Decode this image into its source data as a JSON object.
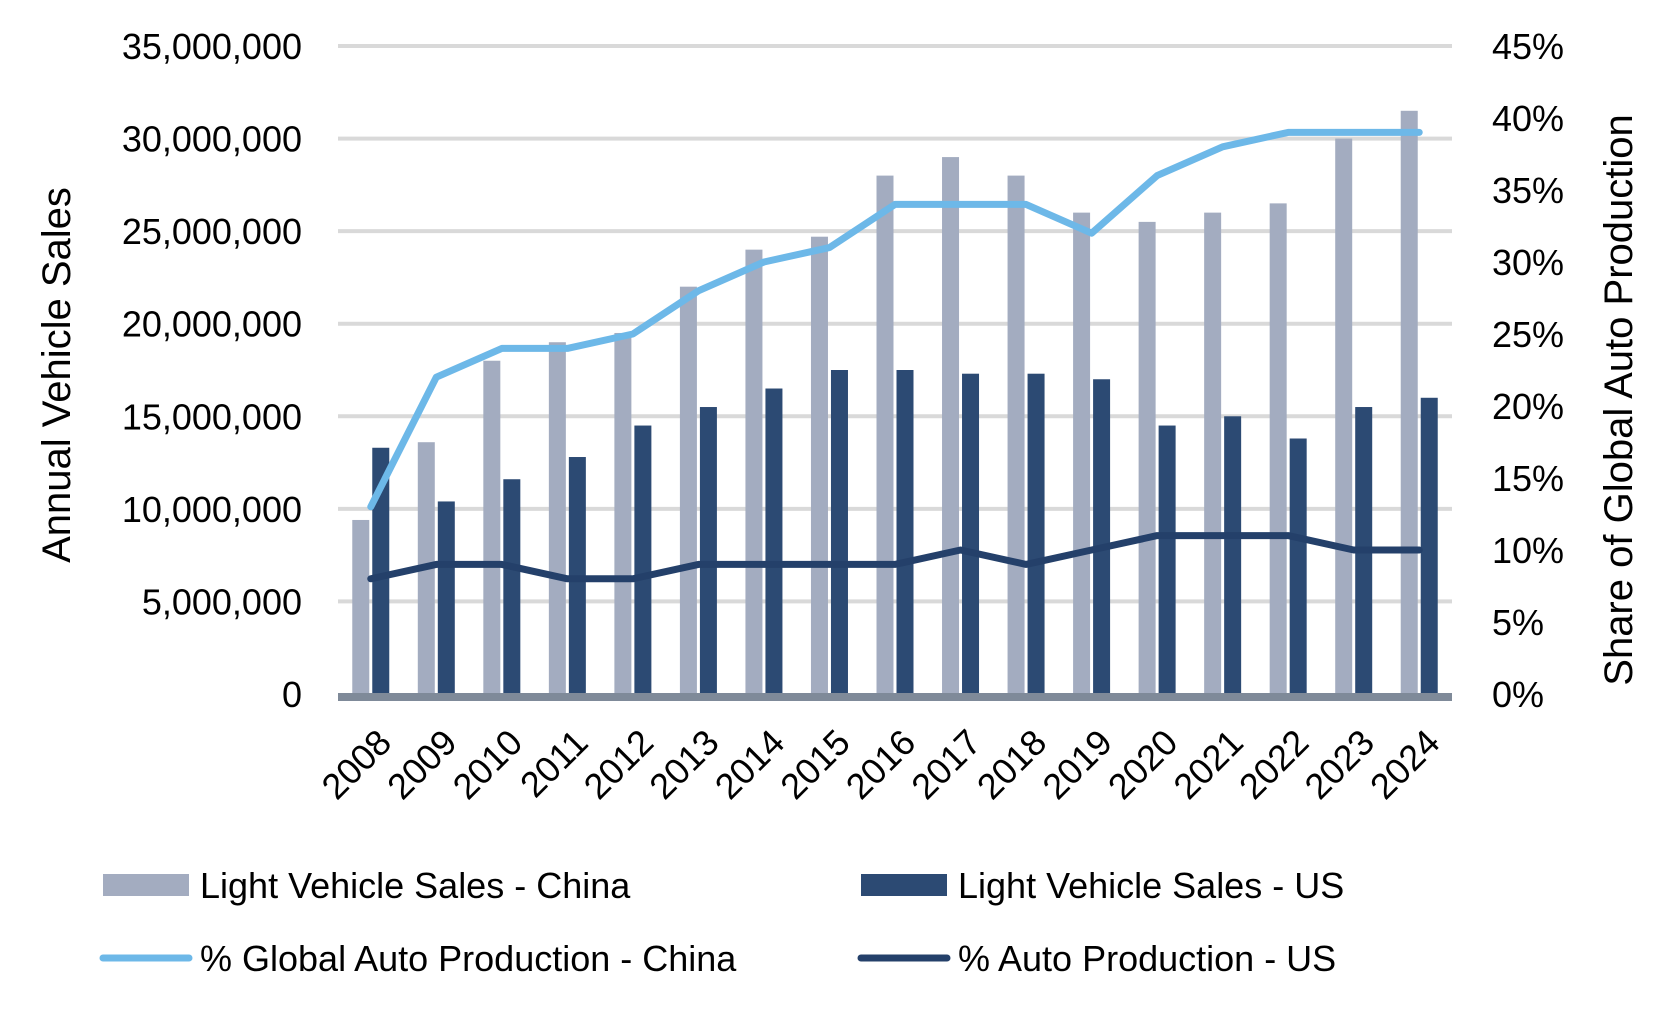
{
  "chart_data": {
    "type": "bar",
    "categories": [
      "2008",
      "2009",
      "2010",
      "2011",
      "2012",
      "2013",
      "2014",
      "2015",
      "2016",
      "2017",
      "2018",
      "2019",
      "2020",
      "2021",
      "2022",
      "2023",
      "2024"
    ],
    "series": [
      {
        "name": "Light Vehicle Sales - China",
        "kind": "bar",
        "axis": "left",
        "values": [
          9400000,
          13600000,
          18000000,
          19000000,
          19500000,
          22000000,
          24000000,
          24700000,
          28000000,
          29000000,
          28000000,
          26000000,
          25500000,
          26000000,
          26500000,
          30000000,
          31500000
        ]
      },
      {
        "name": "Light Vehicle Sales - US",
        "kind": "bar",
        "axis": "left",
        "values": [
          13300000,
          10400000,
          11600000,
          12800000,
          14500000,
          15500000,
          16500000,
          17500000,
          17500000,
          17300000,
          17300000,
          17000000,
          14500000,
          15000000,
          13800000,
          15500000,
          16000000
        ]
      },
      {
        "name": "% Global Auto Production - China",
        "kind": "line",
        "axis": "right",
        "values": [
          0.13,
          0.22,
          0.24,
          0.24,
          0.25,
          0.28,
          0.3,
          0.31,
          0.34,
          0.34,
          0.34,
          0.32,
          0.36,
          0.38,
          0.39,
          0.39,
          0.39
        ]
      },
      {
        "name": "% Auto Production - US",
        "kind": "line",
        "axis": "right",
        "values": [
          0.08,
          0.09,
          0.09,
          0.08,
          0.08,
          0.09,
          0.09,
          0.09,
          0.09,
          0.1,
          0.09,
          0.1,
          0.11,
          0.11,
          0.11,
          0.1,
          0.1
        ]
      }
    ],
    "ylabel": "Annual Vehicle Sales",
    "y2label": "Share of Global Auto Production",
    "ylim": [
      0,
      35000000
    ],
    "y2lim": [
      0,
      0.45
    ],
    "yticks": [
      "0",
      "5,000,000",
      "10,000,000",
      "15,000,000",
      "20,000,000",
      "25,000,000",
      "30,000,000",
      "35,000,000"
    ],
    "y2ticks": [
      "0%",
      "5%",
      "10%",
      "15%",
      "20%",
      "25%",
      "30%",
      "35%",
      "40%",
      "45%"
    ],
    "grid": true,
    "legend_position": "bottom",
    "colors": {
      "china_bar": "#a3acc0",
      "us_bar": "#2c4a73",
      "china_line": "#6db8e8",
      "us_line": "#24406a",
      "grid": "#d9d9d9",
      "axis": "#7f8a99"
    }
  }
}
